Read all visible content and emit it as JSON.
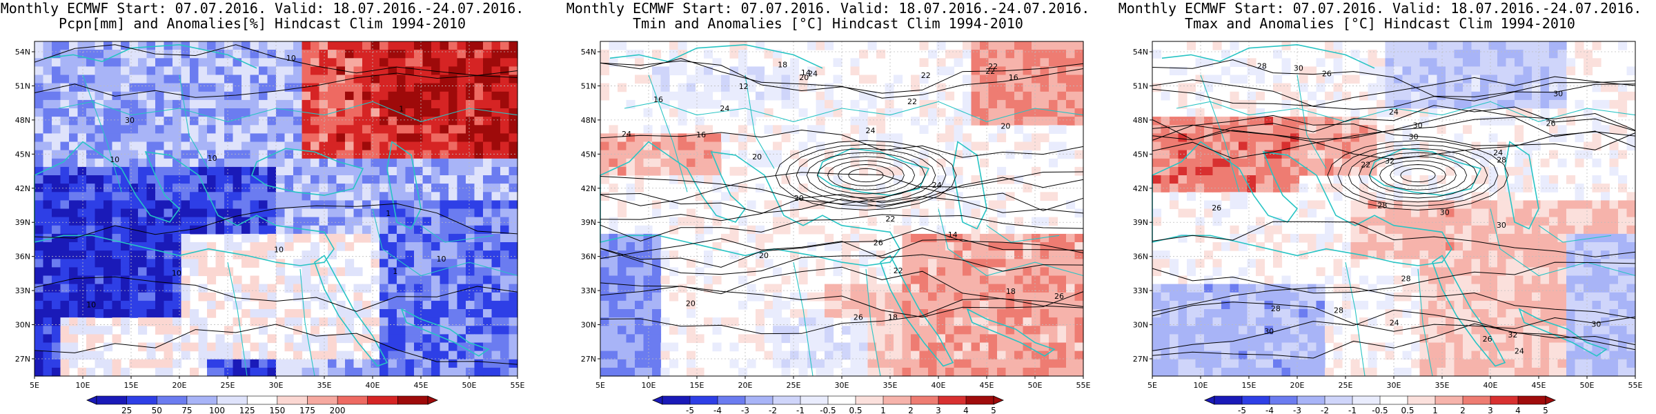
{
  "panels": [
    {
      "id": "pcpn",
      "title_line1": "Monthly ECMWF Start: 07.07.2016. Valid: 18.07.2016.-24.07.2016.",
      "title_line2": "Pcpn[mm] and Anomalies[%] Hindcast Clim 1994-2010",
      "colorbar": {
        "labels": [
          "25",
          "50",
          "75",
          "100",
          "125",
          "150",
          "175",
          "200"
        ],
        "colors": [
          "#1a1ab8",
          "#2e3fe6",
          "#6b7cf0",
          "#a8b4f7",
          "#dfe3fb",
          "#ffffff",
          "#fbd7d2",
          "#f6a9a0",
          "#ee6a62",
          "#d62424",
          "#9e0a0a"
        ]
      },
      "contour_labels": [
        "10",
        "10",
        "30",
        "10",
        "10",
        "10",
        "1",
        "1",
        "1",
        "10",
        "10"
      ]
    },
    {
      "id": "tmin",
      "title_line1": "Monthly ECMWF Start: 07.07.2016. Valid: 18.07.2016.-24.07.2016.",
      "title_line2": "Tmin and Anomalies [°C] Hindcast Clim 1994-2010",
      "colorbar": {
        "labels": [
          "-5",
          "-4",
          "-3",
          "-2",
          "-1",
          "-0.5",
          "0.5",
          "1",
          "2",
          "3",
          "4",
          "5"
        ],
        "colors": [
          "#1a1ab8",
          "#2e3fe6",
          "#6b7cf0",
          "#a8b4f7",
          "#cfd5fa",
          "#e9ecfd",
          "#ffffff",
          "#fbe0dc",
          "#f6b3ab",
          "#ee7c72",
          "#d83030",
          "#a00c0c"
        ]
      },
      "contour_labels": [
        "14",
        "14",
        "16",
        "18",
        "20",
        "20",
        "12",
        "16",
        "16",
        "18",
        "22",
        "20",
        "24",
        "18",
        "20",
        "22",
        "24",
        "26",
        "24",
        "20",
        "22",
        "24",
        "26",
        "20",
        "22",
        "22",
        "24",
        "26",
        "22"
      ]
    },
    {
      "id": "tmax",
      "title_line1": "Monthly ECMWF Start: 07.07.2016. Valid: 18.07.2016.-24.07.2016.",
      "title_line2": "Tmax and Anomalies [°C] Hindcast Clim 1994-2010",
      "colorbar": {
        "labels": [
          "-5",
          "-4",
          "-3",
          "-2",
          "-1",
          "-0.5",
          "0.5",
          "1",
          "2",
          "3",
          "4",
          "5"
        ],
        "colors": [
          "#1a1ab8",
          "#2e3fe6",
          "#6b7cf0",
          "#a8b4f7",
          "#cfd5fa",
          "#e9ecfd",
          "#ffffff",
          "#fbe0dc",
          "#f6b3ab",
          "#ee7c72",
          "#d83030",
          "#a00c0c"
        ]
      },
      "contour_labels": [
        "22",
        "24",
        "24",
        "28",
        "26",
        "28",
        "30",
        "24",
        "28",
        "30",
        "26",
        "30",
        "32",
        "28",
        "30",
        "24",
        "28",
        "30",
        "30",
        "26",
        "26",
        "28",
        "30",
        "32",
        "30"
      ]
    }
  ],
  "axes": {
    "lat_labels": [
      "54N",
      "51N",
      "48N",
      "45N",
      "42N",
      "39N",
      "36N",
      "33N",
      "30N",
      "27N"
    ],
    "lon_labels": [
      "5E",
      "10E",
      "15E",
      "20E",
      "25E",
      "30E",
      "35E",
      "40E",
      "45E",
      "50E",
      "55E"
    ]
  },
  "colors": {
    "coast": "#27c4c4",
    "contour": "#000000",
    "grid": "#bdbdbd"
  }
}
